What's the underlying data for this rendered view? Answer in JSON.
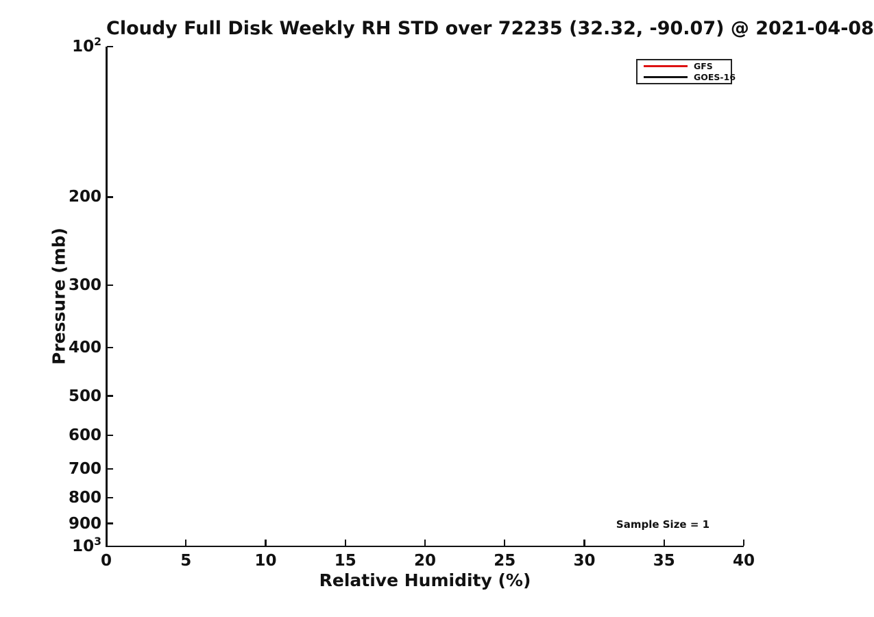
{
  "chart_data": {
    "type": "line",
    "title": "Cloudy Full Disk Weekly RH STD over 72235 (32.32, -90.07) @ 2021-04-08",
    "xlabel": "Relative Humidity (%)",
    "ylabel": "Pressure (mb)",
    "xlim": [
      0,
      40
    ],
    "xticks": [
      0,
      5,
      10,
      15,
      20,
      25,
      30,
      35,
      40
    ],
    "yscale": "log",
    "y_inverted": true,
    "ylim": [
      100,
      1000
    ],
    "yticks": [
      100,
      200,
      300,
      400,
      500,
      600,
      700,
      800,
      900,
      1000
    ],
    "ytick_labels": [
      "10^2",
      "200",
      "300",
      "400",
      "500",
      "600",
      "700",
      "800",
      "900",
      "10^3"
    ],
    "grid": false,
    "legend_position": "upper right",
    "legend": [
      {
        "label": "GFS",
        "color": "#dd1111"
      },
      {
        "label": "GOES-16",
        "color": "#111111"
      }
    ],
    "series": [
      {
        "name": "GFS",
        "color": "#dd1111",
        "points": []
      },
      {
        "name": "GOES-16",
        "color": "#111111",
        "points": []
      }
    ],
    "annotation": "Sample Size = 1"
  }
}
